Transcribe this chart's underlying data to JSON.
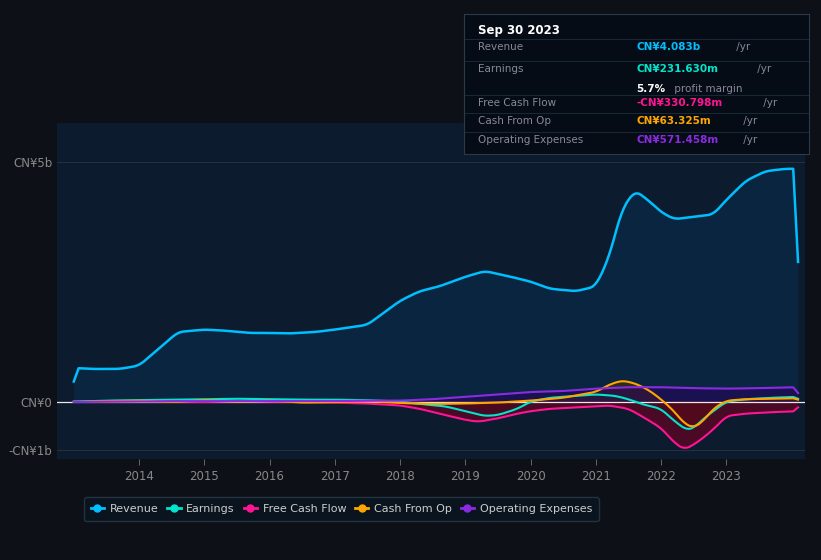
{
  "bg_color": "#0d1117",
  "plot_bg_color": "#0d1b2e",
  "ylim": [
    -1200000000.0,
    5800000000.0
  ],
  "yticks": [
    -1000000000.0,
    0,
    5000000000.0
  ],
  "ytick_labels": [
    "-CN¥1b",
    "CN¥0",
    "CN¥5b"
  ],
  "revenue_color": "#00bfff",
  "earnings_color": "#00e5cc",
  "fcf_color": "#ff1493",
  "cashfromop_color": "#ffa500",
  "opex_color": "#8a2be2",
  "revenue_fill_color": "#0a2540",
  "legend_items": [
    {
      "label": "Revenue",
      "color": "#00bfff"
    },
    {
      "label": "Earnings",
      "color": "#00e5cc"
    },
    {
      "label": "Free Cash Flow",
      "color": "#ff1493"
    },
    {
      "label": "Cash From Op",
      "color": "#ffa500"
    },
    {
      "label": "Operating Expenses",
      "color": "#8a2be2"
    }
  ]
}
